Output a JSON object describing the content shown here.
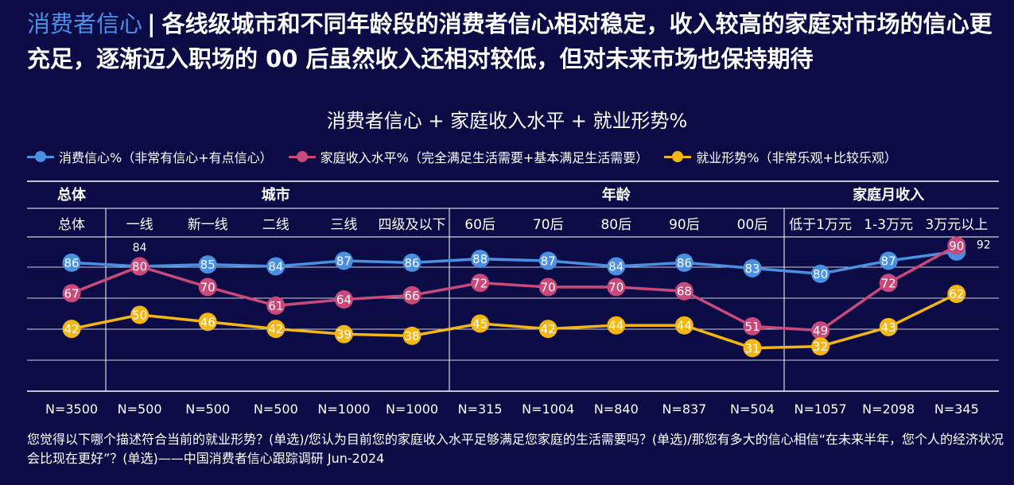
{
  "headline": {
    "accent": "消费者信心",
    "separator": "|",
    "text": "各线级城市和不同年龄段的消费者信心相对稳定，收入较高的家庭对市场的信心更充足，逐渐迈入职场的 00 后虽然收入还相对较低，但对未来市场也保持期待"
  },
  "footnote": "您觉得以下哪个描述符合当前的就业形势？(单选)/您认为目前您的家庭收入水平足够满足您家庭的生活需要吗？(单选)/那您有多大的信心相信“在未来半年，您个人的经济状况会比现在更好”？(单选)——中国消费者信心跟踪调研 Jun-2024",
  "chart_data": {
    "type": "line",
    "title": "消费者信心 + 家庭收入水平 + 就业形势%",
    "legend_position": "top",
    "groups": [
      {
        "label": "总体",
        "span": [
          0,
          0
        ]
      },
      {
        "label": "城市",
        "span": [
          1,
          5
        ]
      },
      {
        "label": "年龄",
        "span": [
          6,
          10
        ]
      },
      {
        "label": "家庭月收入",
        "span": [
          11,
          13
        ]
      }
    ],
    "categories": [
      "总体",
      "一线",
      "新一线",
      "二线",
      "三线",
      "四级及以下",
      "60后",
      "70后",
      "80后",
      "90后",
      "00后",
      "低于1万元",
      "1-3万元",
      "3万元以上"
    ],
    "sample_sizes": [
      "N=3500",
      "N=500",
      "N=500",
      "N=500",
      "N=1000",
      "N=1000",
      "N=315",
      "N=1004",
      "N=840",
      "N=837",
      "N=504",
      "N=1057",
      "N=2098",
      "N=345"
    ],
    "series": [
      {
        "name": "消费信心%（非常有信心+有点信心）",
        "color": "#4a90e2",
        "values": [
          86,
          84,
          85,
          84,
          87,
          86,
          88,
          87,
          84,
          86,
          83,
          80,
          87,
          92
        ],
        "outside_label": [
          false,
          true,
          false,
          false,
          false,
          false,
          false,
          false,
          false,
          false,
          false,
          false,
          false,
          true
        ]
      },
      {
        "name": "家庭收入水平%（完全满足生活需要+基本满足生活需要）",
        "color": "#c9497a",
        "values": [
          67,
          80,
          70,
          61,
          64,
          66,
          72,
          70,
          70,
          68,
          51,
          49,
          72,
          90
        ],
        "outside_label": [
          false,
          false,
          false,
          false,
          false,
          false,
          false,
          false,
          false,
          false,
          false,
          false,
          false,
          false
        ]
      },
      {
        "name": "就业形势%（非常乐观+比较乐观）",
        "color": "#f3b612",
        "values": [
          42,
          50,
          46,
          42,
          39,
          38,
          45,
          42,
          44,
          44,
          31,
          32,
          43,
          62
        ],
        "outside_label": [
          false,
          false,
          false,
          false,
          false,
          false,
          false,
          false,
          false,
          false,
          false,
          false,
          false,
          false
        ]
      }
    ]
  }
}
